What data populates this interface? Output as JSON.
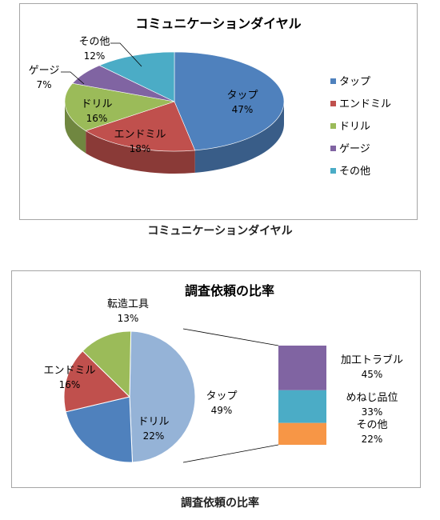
{
  "chart_data": [
    {
      "type": "pie",
      "title": "コミュニケーションダイヤル",
      "caption": "コミュニケーションダイヤル",
      "categories": [
        "タップ",
        "エンドミル",
        "ドリル",
        "ゲージ",
        "その他"
      ],
      "values": [
        47,
        18,
        16,
        7,
        12
      ],
      "labels": [
        "47%",
        "18%",
        "16%",
        "7%",
        "12%"
      ],
      "colors": [
        "#4f81bd",
        "#c0504d",
        "#9bbb59",
        "#8064a2",
        "#4bacc6"
      ],
      "legend_position": "right"
    },
    {
      "type": "pie",
      "title": "調査依頼の比率",
      "caption": "調査依頼の比率",
      "categories": [
        "タップ",
        "ドリル",
        "エンドミル",
        "転造工具"
      ],
      "values": [
        49,
        22,
        16,
        13
      ],
      "labels": [
        "49%",
        "22%",
        "16%",
        "13%"
      ],
      "colors": [
        "#95b3d7",
        "#4f81bd",
        "#c0504d",
        "#9bbb59"
      ],
      "breakdown": {
        "of": "タップ",
        "categories": [
          "加工トラブル",
          "めねじ品位",
          "その他"
        ],
        "values": [
          45,
          33,
          22
        ],
        "labels": [
          "45%",
          "33%",
          "22%"
        ],
        "colors": [
          "#8064a2",
          "#4bacc6",
          "#f79646"
        ]
      }
    }
  ]
}
